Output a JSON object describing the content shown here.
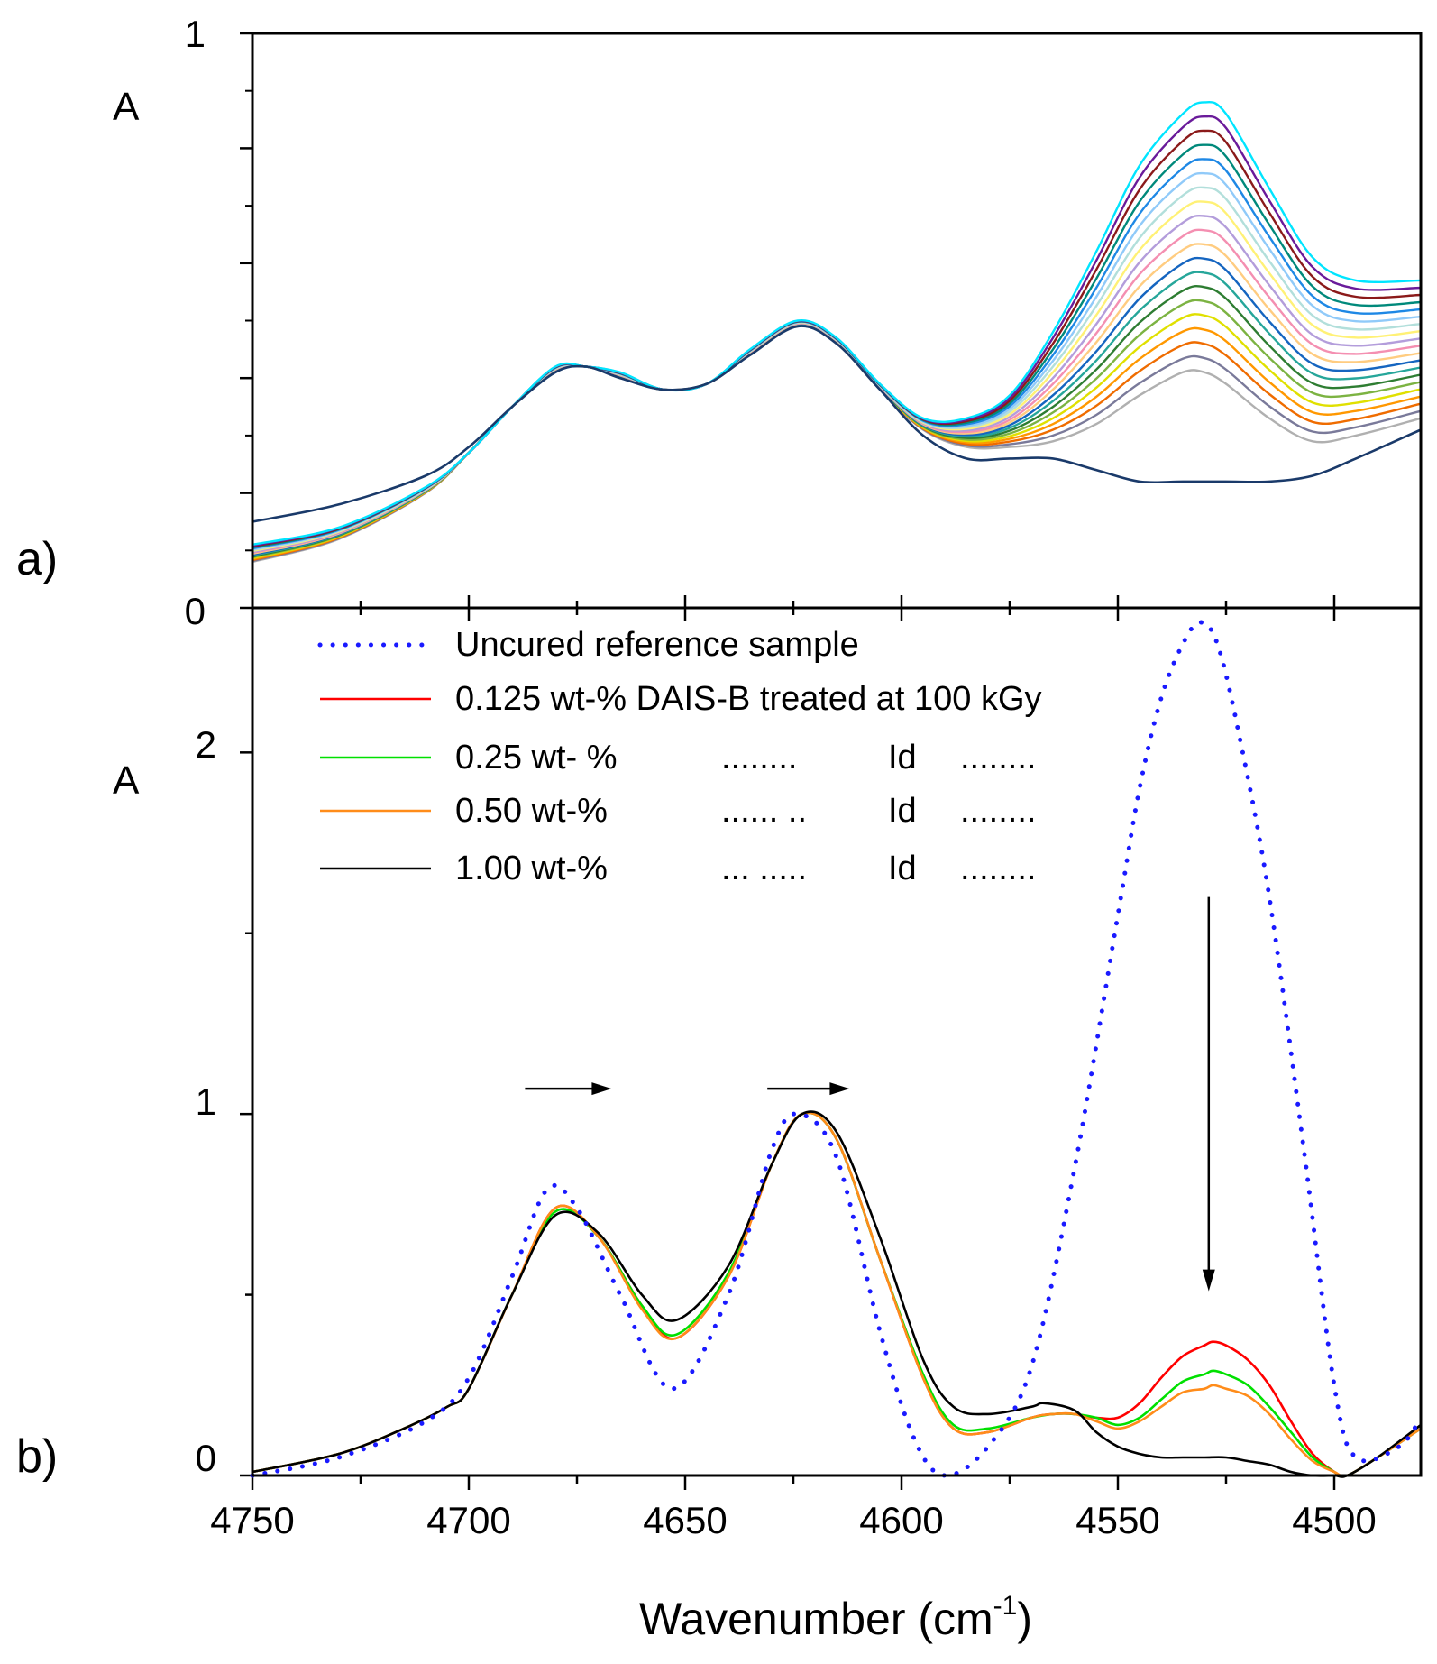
{
  "chart_data": [
    {
      "panel_label": "a)",
      "type": "line",
      "ylabel": "A",
      "ylim": [
        0,
        1
      ],
      "y_tick_labels": [
        {
          "value": 0,
          "label": "0"
        },
        {
          "value": 1,
          "label": "1"
        }
      ],
      "x_range": [
        4750,
        4480
      ],
      "x_reversed": true,
      "grid": false,
      "series_group": {
        "count": 20,
        "colors": [
          "#b0b0b0",
          "#7a7a9a",
          "#ef6c00",
          "#ff9800",
          "#e0e000",
          "#7cb342",
          "#2e7d32",
          "#26a69a",
          "#1565c0",
          "#ffcc80",
          "#f48fb1",
          "#b39ddb",
          "#fff176",
          "#b2dfdb",
          "#90caf9",
          "#1e88e5",
          "#00897b",
          "#8b1a1a",
          "#6a1b9a",
          "#00e5ff"
        ],
        "x": [
          4750,
          4730,
          4710,
          4700,
          4690,
          4680,
          4673,
          4665,
          4655,
          4645,
          4635,
          4624,
          4615,
          4605,
          4595,
          4585,
          4575,
          4565,
          4555,
          4545,
          4535,
          4530,
          4525,
          4515,
          4505,
          4495,
          4480
        ],
        "y_low": [
          0.08,
          0.12,
          0.2,
          0.27,
          0.35,
          0.41,
          0.42,
          0.4,
          0.38,
          0.39,
          0.44,
          0.49,
          0.46,
          0.38,
          0.31,
          0.28,
          0.28,
          0.29,
          0.32,
          0.37,
          0.41,
          0.41,
          0.39,
          0.33,
          0.29,
          0.3,
          0.33
        ],
        "y_high": [
          0.11,
          0.14,
          0.21,
          0.27,
          0.35,
          0.42,
          0.42,
          0.41,
          0.38,
          0.39,
          0.45,
          0.5,
          0.47,
          0.39,
          0.33,
          0.33,
          0.37,
          0.48,
          0.62,
          0.77,
          0.86,
          0.88,
          0.86,
          0.73,
          0.61,
          0.57,
          0.57
        ]
      },
      "reference_line": {
        "color": "#1a3a6a",
        "x": [
          4750,
          4730,
          4710,
          4700,
          4690,
          4680,
          4673,
          4665,
          4655,
          4645,
          4635,
          4624,
          4615,
          4605,
          4595,
          4585,
          4575,
          4565,
          4555,
          4545,
          4535,
          4525,
          4515,
          4505,
          4495,
          4480
        ],
        "y": [
          0.15,
          0.18,
          0.23,
          0.28,
          0.35,
          0.41,
          0.42,
          0.4,
          0.38,
          0.39,
          0.44,
          0.49,
          0.46,
          0.38,
          0.3,
          0.26,
          0.26,
          0.26,
          0.24,
          0.22,
          0.22,
          0.22,
          0.22,
          0.23,
          0.26,
          0.31
        ]
      }
    },
    {
      "panel_label": "b)",
      "type": "line",
      "ylabel": "A",
      "ylim": [
        0,
        2.4
      ],
      "y_tick_labels": [
        {
          "value": 0,
          "label": "0"
        },
        {
          "value": 1,
          "label": "1"
        },
        {
          "value": 2,
          "label": "2"
        }
      ],
      "x_range": [
        4750,
        4480
      ],
      "x_reversed": true,
      "x_ticks": [
        4750,
        4700,
        4650,
        4600,
        4550,
        4500
      ],
      "xlabel": "Wavenumber (cm",
      "xlabel_sup": "-1",
      "xlabel_suffix": ")",
      "grid": false,
      "series": [
        {
          "name": "Uncured reference sample",
          "color": "#1a1aff",
          "style": "dotted",
          "x": [
            4750,
            4730,
            4710,
            4700,
            4690,
            4682,
            4675,
            4665,
            4653,
            4640,
            4630,
            4624,
            4615,
            4605,
            4597,
            4590,
            4580,
            4570,
            4560,
            4550,
            4545,
            4540,
            4535,
            4531,
            4527,
            4522,
            4515,
            4507,
            4500,
            4495,
            4485,
            4480
          ],
          "y": [
            0.0,
            0.05,
            0.15,
            0.27,
            0.55,
            0.79,
            0.74,
            0.5,
            0.24,
            0.5,
            0.9,
            1.0,
            0.88,
            0.4,
            0.1,
            0.0,
            0.08,
            0.3,
            0.85,
            1.55,
            1.9,
            2.15,
            2.3,
            2.36,
            2.3,
            2.05,
            1.6,
            0.9,
            0.25,
            0.05,
            0.08,
            0.16
          ]
        },
        {
          "name": "0.125 wt-% DAIS-B treated at 100 kGy",
          "color": "#ff0000",
          "style": "solid",
          "x": [
            4750,
            4730,
            4715,
            4705,
            4700,
            4690,
            4680,
            4670,
            4660,
            4652,
            4640,
            4630,
            4623,
            4615,
            4605,
            4595,
            4588,
            4580,
            4570,
            4565,
            4560,
            4555,
            4550,
            4545,
            4540,
            4535,
            4530,
            4528,
            4525,
            4520,
            4515,
            4510,
            4505,
            4500,
            4497,
            4490,
            4480
          ],
          "y": [
            0.01,
            0.06,
            0.13,
            0.19,
            0.24,
            0.5,
            0.74,
            0.66,
            0.47,
            0.38,
            0.55,
            0.86,
            1.0,
            0.93,
            0.6,
            0.27,
            0.13,
            0.12,
            0.16,
            0.17,
            0.17,
            0.16,
            0.16,
            0.2,
            0.27,
            0.33,
            0.36,
            0.37,
            0.36,
            0.32,
            0.25,
            0.15,
            0.06,
            0.01,
            0.0,
            0.05,
            0.13
          ]
        },
        {
          "name": "0.25   wt- %",
          "name_extra": [
            "........",
            "Id",
            "........"
          ],
          "color": "#00e000",
          "style": "solid",
          "x": [
            4750,
            4730,
            4715,
            4705,
            4700,
            4690,
            4680,
            4670,
            4660,
            4652,
            4640,
            4630,
            4623,
            4615,
            4605,
            4595,
            4588,
            4580,
            4570,
            4565,
            4560,
            4555,
            4550,
            4545,
            4540,
            4535,
            4530,
            4528,
            4525,
            4520,
            4515,
            4510,
            4505,
            4500,
            4497,
            4490,
            4480
          ],
          "y": [
            0.01,
            0.06,
            0.13,
            0.19,
            0.24,
            0.5,
            0.73,
            0.66,
            0.47,
            0.39,
            0.56,
            0.86,
            1.0,
            0.93,
            0.6,
            0.28,
            0.14,
            0.13,
            0.16,
            0.17,
            0.17,
            0.16,
            0.14,
            0.16,
            0.21,
            0.26,
            0.28,
            0.29,
            0.28,
            0.25,
            0.19,
            0.12,
            0.05,
            0.01,
            0.0,
            0.05,
            0.13
          ]
        },
        {
          "name": "0.50   wt-%",
          "name_extra": [
            "...... ..",
            "Id",
            "........"
          ],
          "color": "#ff8c1a",
          "style": "solid",
          "x": [
            4750,
            4730,
            4715,
            4705,
            4700,
            4690,
            4680,
            4670,
            4660,
            4652,
            4640,
            4630,
            4623,
            4615,
            4605,
            4595,
            4588,
            4580,
            4570,
            4565,
            4560,
            4555,
            4550,
            4545,
            4540,
            4535,
            4530,
            4528,
            4525,
            4520,
            4515,
            4510,
            4505,
            4500,
            4497,
            4490,
            4480
          ],
          "y": [
            0.01,
            0.06,
            0.13,
            0.19,
            0.24,
            0.5,
            0.74,
            0.66,
            0.46,
            0.38,
            0.55,
            0.86,
            1.0,
            0.93,
            0.6,
            0.27,
            0.13,
            0.12,
            0.16,
            0.17,
            0.17,
            0.15,
            0.13,
            0.15,
            0.19,
            0.23,
            0.24,
            0.25,
            0.24,
            0.22,
            0.17,
            0.1,
            0.04,
            0.01,
            0.0,
            0.05,
            0.13
          ]
        },
        {
          "name": "1.00   wt-%",
          "name_extra": [
            "... .....",
            "Id",
            "........"
          ],
          "color": "#000000",
          "style": "solid",
          "x": [
            4750,
            4730,
            4715,
            4705,
            4700,
            4690,
            4680,
            4670,
            4660,
            4652,
            4640,
            4630,
            4623,
            4615,
            4605,
            4595,
            4588,
            4580,
            4570,
            4567,
            4560,
            4555,
            4550,
            4545,
            4540,
            4535,
            4530,
            4525,
            4520,
            4515,
            4510,
            4505,
            4500,
            4497,
            4490,
            4480
          ],
          "y": [
            0.01,
            0.06,
            0.13,
            0.19,
            0.24,
            0.5,
            0.72,
            0.67,
            0.5,
            0.43,
            0.58,
            0.86,
            1.0,
            0.95,
            0.66,
            0.32,
            0.19,
            0.17,
            0.19,
            0.2,
            0.18,
            0.12,
            0.08,
            0.06,
            0.05,
            0.05,
            0.05,
            0.05,
            0.04,
            0.03,
            0.01,
            0.0,
            0.0,
            0.0,
            0.05,
            0.14
          ]
        }
      ],
      "annotations": [
        {
          "type": "arrow",
          "direction": "right",
          "x1": 4687,
          "x2": 4667,
          "y": 1.07
        },
        {
          "type": "arrow",
          "direction": "right",
          "x1": 4631,
          "x2": 4612,
          "y": 1.07
        },
        {
          "type": "arrow",
          "direction": "down",
          "x": 4529,
          "y1": 1.6,
          "y2": 0.51
        }
      ]
    }
  ]
}
